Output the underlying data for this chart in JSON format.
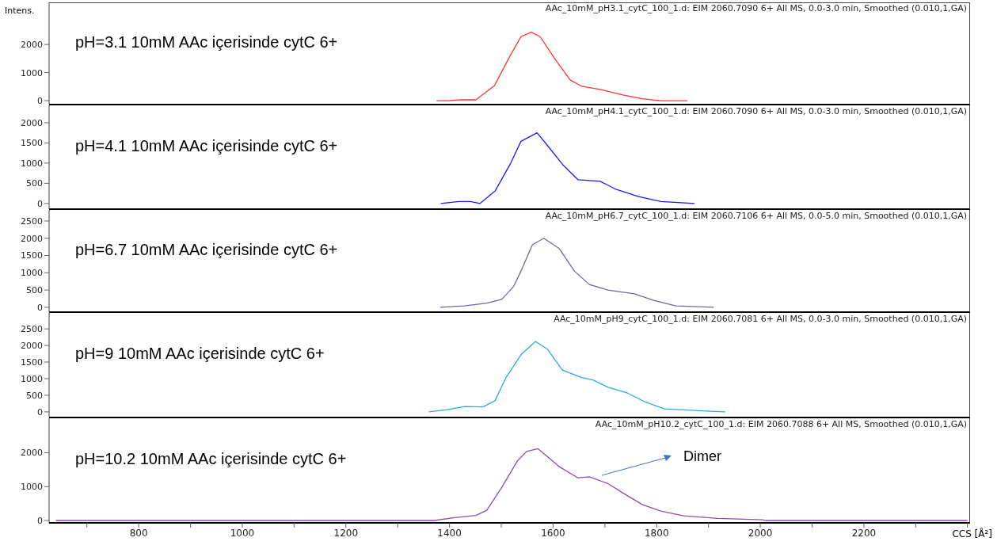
{
  "chart_data": [
    {
      "type": "line",
      "ylabel": "Intens.",
      "annotations": [
        "pH=3.1 10mM AAc içerisinde cytC 6+",
        "AAc_10mM_pH3.1_cytC_100_1.d: EIM 2060.7090 6+ All MS, 0.0-3.0 min, Smoothed (0.010,1,GA)"
      ],
      "x": [
        1375,
        1400,
        1420,
        1451,
        1487,
        1517,
        1538,
        1558,
        1575,
        1604,
        1633,
        1655,
        1691,
        1735,
        1772,
        1808,
        1859
      ],
      "xlim": [
        627,
        2405
      ],
      "ylim": [
        -140,
        3500
      ],
      "yticks": [
        0,
        1000,
        2000
      ],
      "tick_labels": "y",
      "series": [
        {
          "color": "#ff3333",
          "values": [
            0,
            0,
            30,
            30,
            540,
            1600,
            2280,
            2440,
            2280,
            1470,
            740,
            510,
            400,
            200,
            70,
            0,
            0
          ]
        }
      ]
    },
    {
      "type": "line",
      "annotations": [
        "pH=4.1 10mM AAc içerisinde cytC 6+",
        "AAc_10mM_pH4.1_cytC_100_1.d: EIM 2060.7090 6+ All MS, 0.0-3.0 min, Smoothed (0.010,1,GA)"
      ],
      "x": [
        1383,
        1418,
        1440,
        1459,
        1488,
        1517,
        1538,
        1569,
        1589,
        1618,
        1648,
        1691,
        1720,
        1765,
        1808,
        1873
      ],
      "xlim": [
        627,
        2405
      ],
      "ylim": [
        -140,
        2430
      ],
      "yticks": [
        0,
        500,
        1000,
        1500,
        2000
      ],
      "tick_labels": "y",
      "series": [
        {
          "color": "#1a1aff",
          "values": [
            0,
            50,
            50,
            0,
            310,
            970,
            1540,
            1750,
            1440,
            970,
            590,
            550,
            360,
            170,
            50,
            0
          ]
        }
      ]
    },
    {
      "type": "line",
      "annotations": [
        "pH=6.7 10mM AAc içerisinde cytC 6+",
        "AAc_10mM_pH6.7_cytC_100_1.d: EIM 2060.7106 6+ All MS, 0.0-5.0 min, Smoothed (0.010,1,GA)"
      ],
      "x": [
        1382,
        1429,
        1472,
        1501,
        1524,
        1538,
        1560,
        1582,
        1612,
        1641,
        1670,
        1706,
        1757,
        1794,
        1837,
        1910
      ],
      "xlim": [
        627,
        2405
      ],
      "ylim": [
        -140,
        2820
      ],
      "yticks": [
        0,
        500,
        1000,
        1500,
        2000,
        2500
      ],
      "tick_labels": "y",
      "series": [
        {
          "color": "#6b6b9b",
          "values": [
            0,
            40,
            120,
            230,
            610,
            1050,
            1810,
            2000,
            1700,
            1050,
            660,
            500,
            390,
            200,
            40,
            0
          ]
        }
      ]
    },
    {
      "type": "line",
      "annotations": [
        "pH=9 10mM AAc içerisinde cytC 6+",
        "AAc_10mM_pH9_cytC_100_1.d: EIM 2060.7081 6+ All MS, 0.0-3.0 min, Smoothed (0.010,1,GA)"
      ],
      "x": [
        1360,
        1393,
        1429,
        1465,
        1488,
        1509,
        1538,
        1566,
        1589,
        1618,
        1655,
        1677,
        1706,
        1743,
        1779,
        1815,
        1852,
        1903,
        1932
      ],
      "xlim": [
        627,
        2405
      ],
      "ylim": [
        -170,
        2980
      ],
      "yticks": [
        0,
        500,
        1000,
        1500,
        2000,
        2500
      ],
      "tick_labels": "y",
      "series": [
        {
          "color": "#29abe2",
          "values": [
            0,
            60,
            160,
            150,
            340,
            1030,
            1720,
            2120,
            1890,
            1260,
            1030,
            960,
            740,
            570,
            290,
            90,
            60,
            20,
            0
          ]
        }
      ]
    },
    {
      "type": "line",
      "xlabel": "CCS [Å²]",
      "annotations": [
        "pH=10.2 10mM AAc içerisinde cytC 6+",
        "AAc_10mM_pH10.2_cytC_100_1.d: EIM 2060.7088 6+ All MS, Smoothed (0.010,1,GA)",
        "Dimer"
      ],
      "x": [
        640,
        1371,
        1407,
        1451,
        1472,
        1501,
        1531,
        1549,
        1571,
        1612,
        1648,
        1670,
        1706,
        1735,
        1772,
        1808,
        1852,
        1918,
        2005,
        2010,
        2400
      ],
      "xlim": [
        627,
        2405
      ],
      "xticks": [
        {
          "value": 700,
          "label": null
        },
        800,
        {
          "value": 900,
          "label": null
        },
        1000,
        {
          "value": 1100,
          "label": null
        },
        1200,
        {
          "value": 1300,
          "label": null
        },
        1400,
        {
          "value": 1500,
          "label": null
        },
        1600,
        {
          "value": 1700,
          "label": null
        },
        1800,
        {
          "value": 1900,
          "label": null
        },
        2000,
        {
          "value": 2100,
          "label": null
        },
        2200,
        {
          "value": 2300,
          "label": null
        },
        {
          "value": 2400,
          "label": null
        }
      ],
      "ylim": [
        -70,
        3020
      ],
      "yticks": [
        0,
        1000,
        2000
      ],
      "series": [
        {
          "color": "#8a50b0",
          "values": [
            0,
            0,
            80,
            150,
            300,
            980,
            1760,
            2040,
            2120,
            1590,
            1260,
            1290,
            1090,
            810,
            470,
            280,
            140,
            60,
            20,
            0,
            0
          ]
        }
      ]
    }
  ]
}
